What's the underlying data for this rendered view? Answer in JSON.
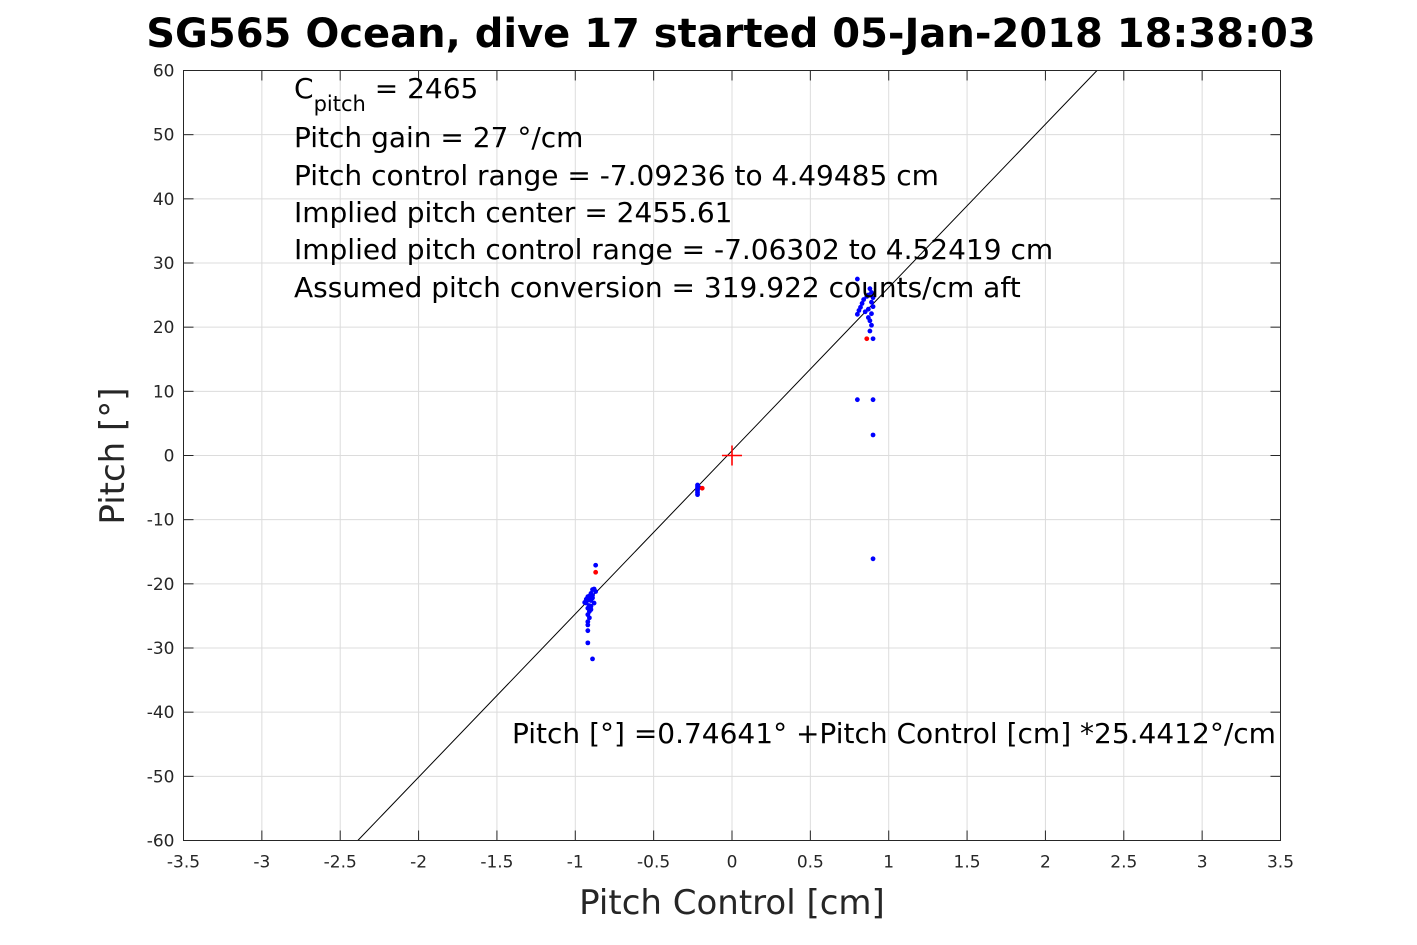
{
  "chart_data": {
    "type": "scatter",
    "title": "SG565 Ocean, dive 17 started 05-Jan-2018 18:38:03",
    "xlabel": "Pitch Control [cm]",
    "ylabel": "Pitch [°]",
    "xlim": [
      -3.5,
      3.5
    ],
    "ylim": [
      -60,
      60
    ],
    "xticks": [
      -3.5,
      -3,
      -2.5,
      -2,
      -1.5,
      -1,
      -0.5,
      0,
      0.5,
      1,
      1.5,
      2,
      2.5,
      3,
      3.5
    ],
    "yticks": [
      -60,
      -50,
      -40,
      -30,
      -20,
      -10,
      0,
      10,
      20,
      30,
      40,
      50,
      60
    ],
    "xtick_labels": [
      "-3.5",
      "-3",
      "-2.5",
      "-2",
      "-1.5",
      "-1",
      "-0.5",
      "0",
      "0.5",
      "1",
      "1.5",
      "2",
      "2.5",
      "3",
      "3.5"
    ],
    "ytick_labels": [
      "-60",
      "-50",
      "-40",
      "-30",
      "-20",
      "-10",
      "0",
      "10",
      "20",
      "30",
      "40",
      "50",
      "60"
    ],
    "grid": true,
    "annotations": {
      "cpitch_base": "C",
      "cpitch_sub": "pitch",
      "cpitch_rest": " = 2465",
      "line2": "Pitch gain = 27 °/cm",
      "line3": "Pitch control range = -7.09236 to 4.49485 cm",
      "line4": "Implied pitch center = 2455.61",
      "line5": "Implied pitch control range = -7.06302 to 4.52419 cm",
      "line6": "Assumed pitch conversion = 319.922 counts/cm aft",
      "fit_text": "Pitch [°] =0.74641° +Pitch Control [cm] *25.4412°/cm"
    },
    "fit_line": {
      "intercept": 0.74641,
      "slope": 25.4412,
      "color": "#000000"
    },
    "center_marker": {
      "x": 0,
      "y": 0,
      "color": "#ff0000"
    },
    "series": [
      {
        "color": "#0000ff",
        "points": [
          [
            -0.92,
            -22.0
          ],
          [
            -0.92,
            -22.5
          ],
          [
            -0.93,
            -23.0
          ],
          [
            -0.91,
            -23.4
          ],
          [
            -0.92,
            -23.8
          ],
          [
            -0.93,
            -22.7
          ],
          [
            -0.91,
            -24.3
          ],
          [
            -0.92,
            -24.8
          ],
          [
            -0.91,
            -25.3
          ],
          [
            -0.92,
            -25.9
          ],
          [
            -0.92,
            -26.4
          ],
          [
            -0.92,
            -27.3
          ],
          [
            -0.92,
            -29.2
          ],
          [
            -0.89,
            -31.7
          ],
          [
            -0.9,
            -21.5
          ],
          [
            -0.89,
            -21.8
          ],
          [
            -0.89,
            -22.2
          ],
          [
            -0.88,
            -20.8
          ],
          [
            -0.87,
            -21.2
          ],
          [
            -0.88,
            -23.0
          ],
          [
            -0.9,
            -23.5
          ],
          [
            -0.87,
            -17.1
          ],
          [
            -0.9,
            -24.0
          ],
          [
            -0.94,
            -22.9
          ],
          [
            -0.93,
            -22.4
          ],
          [
            -0.91,
            -21.9
          ],
          [
            -0.9,
            -22.6
          ],
          [
            -0.89,
            -20.9
          ],
          [
            -0.22,
            -4.6
          ],
          [
            -0.22,
            -4.9
          ],
          [
            -0.22,
            -5.2
          ],
          [
            -0.22,
            -5.5
          ],
          [
            -0.22,
            -5.8
          ],
          [
            -0.22,
            -6.1
          ],
          [
            -0.21,
            -5.0
          ],
          [
            0.8,
            27.5
          ],
          [
            0.8,
            8.7
          ],
          [
            0.8,
            22.0
          ],
          [
            0.81,
            22.6
          ],
          [
            0.82,
            23.1
          ],
          [
            0.83,
            23.7
          ],
          [
            0.84,
            24.3
          ],
          [
            0.85,
            22.4
          ],
          [
            0.86,
            24.8
          ],
          [
            0.87,
            25.0
          ],
          [
            0.87,
            22.8
          ],
          [
            0.88,
            21.0
          ],
          [
            0.88,
            19.4
          ],
          [
            0.89,
            25.4
          ],
          [
            0.89,
            23.9
          ],
          [
            0.89,
            22.1
          ],
          [
            0.89,
            20.3
          ],
          [
            0.9,
            24.6
          ],
          [
            0.9,
            23.2
          ],
          [
            0.9,
            18.2
          ],
          [
            0.9,
            8.7
          ],
          [
            0.9,
            3.2
          ],
          [
            0.9,
            -16.1
          ],
          [
            0.88,
            26.0
          ],
          [
            0.87,
            21.5
          ]
        ]
      },
      {
        "color": "#ff0000",
        "points": [
          [
            -0.87,
            -18.2
          ],
          [
            -0.19,
            -5.1
          ],
          [
            0.86,
            18.2
          ]
        ]
      }
    ]
  }
}
